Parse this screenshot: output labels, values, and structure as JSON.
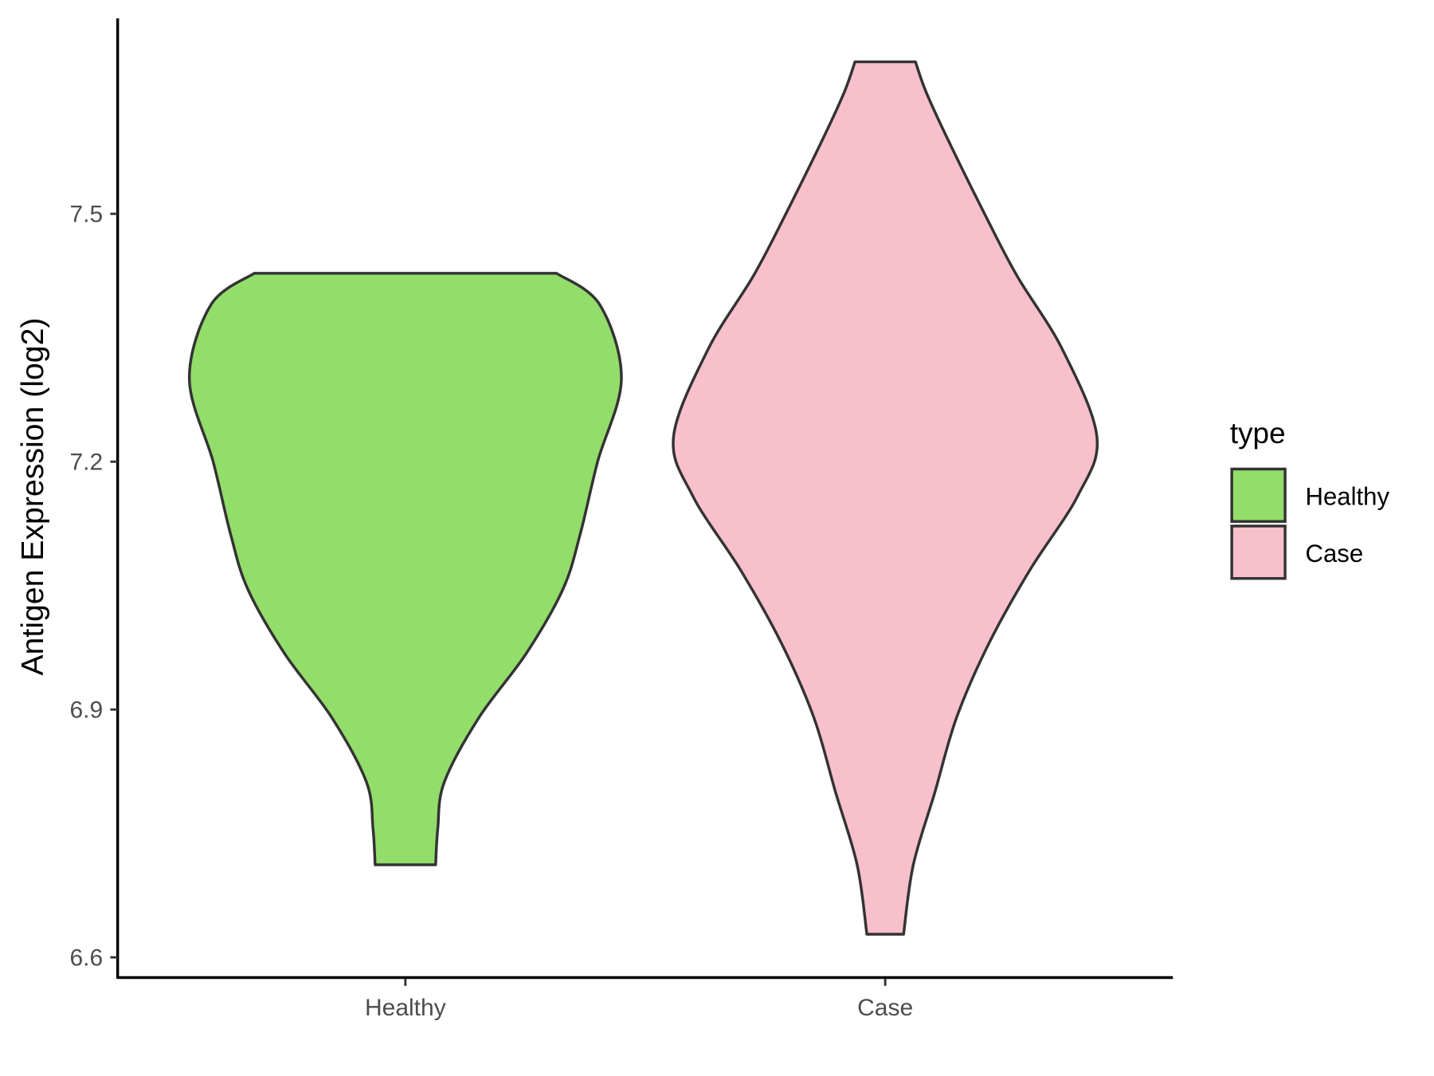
{
  "chart_data": {
    "type": "violin",
    "title": "",
    "xlabel": "",
    "ylabel": "Antigen Expression (log2)",
    "categories": [
      "Healthy",
      "Case"
    ],
    "ylim": [
      6.575,
      7.735
    ],
    "yticks": [
      6.6,
      6.9,
      7.2,
      7.5
    ],
    "ytick_labels": [
      "6.6",
      "6.9",
      "7.2",
      "7.5"
    ],
    "grid": false,
    "legend": {
      "title": "type",
      "position": "right",
      "entries": [
        "Healthy",
        "Case"
      ]
    },
    "colors": {
      "Healthy": "#93DD6A",
      "Case": "#F8C0CC",
      "outline": "#333333"
    },
    "series": [
      {
        "name": "Healthy",
        "min": 6.712,
        "max": 7.428,
        "profile": [
          [
            7.428,
            0.7
          ],
          [
            7.39,
            0.9
          ],
          [
            7.3,
            1.0
          ],
          [
            7.2,
            0.89
          ],
          [
            7.113,
            0.81
          ],
          [
            7.046,
            0.73
          ],
          [
            6.968,
            0.56
          ],
          [
            6.89,
            0.34
          ],
          [
            6.812,
            0.18
          ],
          [
            6.756,
            0.15
          ],
          [
            6.712,
            0.14
          ]
        ]
      },
      {
        "name": "Case",
        "min": 6.628,
        "max": 7.684,
        "profile": [
          [
            7.684,
            0.14
          ],
          [
            7.647,
            0.19
          ],
          [
            7.59,
            0.29
          ],
          [
            7.5,
            0.46
          ],
          [
            7.425,
            0.61
          ],
          [
            7.336,
            0.82
          ],
          [
            7.23,
            0.98
          ],
          [
            7.158,
            0.89
          ],
          [
            7.069,
            0.67
          ],
          [
            6.98,
            0.48
          ],
          [
            6.89,
            0.33
          ],
          [
            6.8,
            0.23
          ],
          [
            6.712,
            0.13
          ],
          [
            6.628,
            0.085
          ]
        ]
      }
    ]
  }
}
